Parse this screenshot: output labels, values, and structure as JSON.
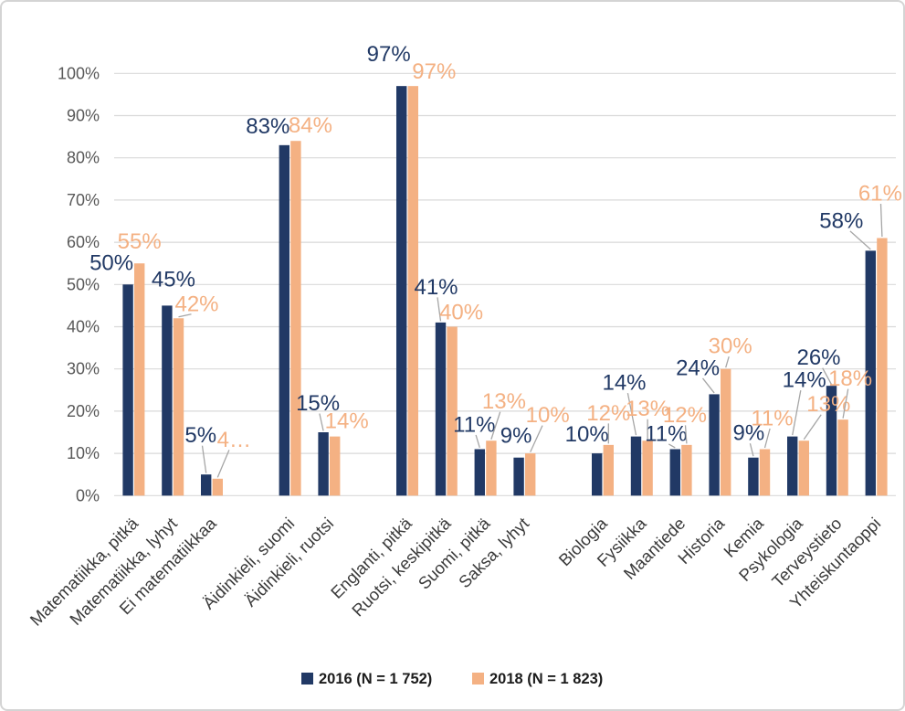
{
  "chart_data": {
    "type": "bar",
    "title": "",
    "categories": [
      "Matematiikka, pitkä",
      "Matematiikka, lyhyt",
      "Ei matematiikkaa",
      "Äidinkieli, suomi",
      "Äidinkieli, ruotsi",
      "Englanti, pitkä",
      "Ruotsi, keskipitkä",
      "Suomi, pitkä",
      "Saksa, lyhyt",
      "Biologia",
      "Fysiikka",
      "Maantiede",
      "Historia",
      "Kemia",
      "Psykologia",
      "Terveystieto",
      "Yhteiskuntaoppi"
    ],
    "series": [
      {
        "name": "2016 (N = 1 752)",
        "color": "#213965",
        "values": [
          50,
          45,
          5,
          83,
          15,
          97,
          41,
          11,
          9,
          10,
          14,
          11,
          24,
          9,
          14,
          26,
          58
        ],
        "labels": [
          "50%",
          "45%",
          "5%",
          "83%",
          "15%",
          "97%",
          "41%",
          "11%",
          "9%",
          "10%",
          "14%",
          "11%",
          "24%",
          "9%",
          "14%",
          "26%",
          "58%"
        ]
      },
      {
        "name": "2018 (N = 1 823)",
        "color": "#F4B183",
        "values": [
          55,
          42,
          4,
          84,
          14,
          97,
          40,
          13,
          10,
          12,
          13,
          12,
          30,
          11,
          13,
          18,
          61
        ],
        "labels": [
          "55%",
          "42%",
          "4…",
          "84%",
          "14%",
          "97%",
          "40%",
          "13%",
          "10%",
          "12%",
          "13%",
          "12%",
          "30%",
          "11%",
          "13%",
          "18%",
          "61%"
        ]
      }
    ],
    "xlabel": "",
    "ylabel": "",
    "ylim": [
      0,
      100
    ],
    "ytick_step": 10,
    "yticks": [
      "0%",
      "10%",
      "20%",
      "30%",
      "40%",
      "50%",
      "60%",
      "70%",
      "80%",
      "90%",
      "100%"
    ],
    "grid": "horizontal",
    "legend_position": "bottom",
    "group_gaps_after": [
      2,
      4,
      8
    ],
    "colors": {
      "gridline": "#D9D9D9",
      "axis_tick_text": "#595959",
      "category_text": "#3a3a3a",
      "leader_line": "#A6A6A6",
      "legend_text": "#1c1c1c"
    }
  }
}
